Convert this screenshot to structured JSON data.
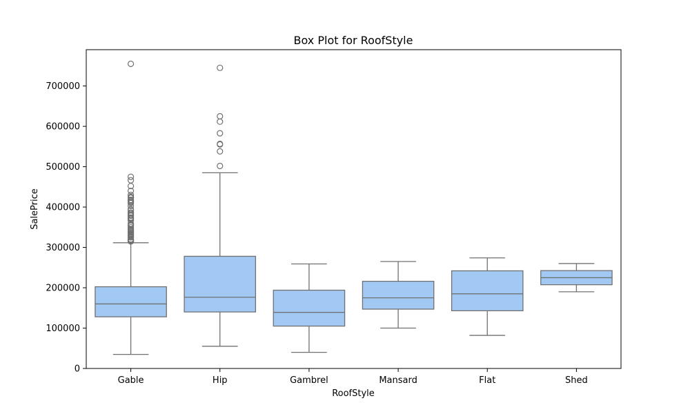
{
  "chart_data": {
    "type": "box",
    "title": "Box Plot for RoofStyle",
    "xlabel": "RoofStyle",
    "ylabel": "SalePrice",
    "ylim": [
      0,
      790000
    ],
    "yticks": [
      0,
      100000,
      200000,
      300000,
      400000,
      500000,
      600000,
      700000
    ],
    "grid": false,
    "colors": {
      "box_fill": "#a1c9f4",
      "line": "#707070"
    },
    "categories": [
      "Gable",
      "Hip",
      "Gambrel",
      "Mansard",
      "Flat",
      "Shed"
    ],
    "boxes": [
      {
        "category": "Gable",
        "whisker_low": 34900,
        "q1": 128000,
        "median": 160000,
        "q3": 202500,
        "whisker_high": 311500,
        "outliers": [
          755000,
          475000,
          466500,
          451950,
          440000,
          430000,
          424870,
          423000,
          418000,
          415298,
          412500,
          410000,
          402861,
          395000,
          392000,
          386250,
          385000,
          381000,
          378500,
          374000,
          372500,
          370878,
          367294,
          359100,
          356000,
          354000,
          350000,
          345000,
          342643,
          340000,
          337500,
          335000,
          333168,
          330000,
          328000,
          325624,
          325000,
          320000,
          319900,
          318000,
          317000,
          315000,
          314813
        ]
      },
      {
        "category": "Hip",
        "whisker_low": 55000,
        "q1": 140000,
        "median": 176500,
        "q3": 278000,
        "whisker_high": 485000,
        "outliers": [
          745000,
          625000,
          611657,
          582933,
          556581,
          555000,
          538000,
          501837
        ]
      },
      {
        "category": "Gambrel",
        "whisker_low": 40000,
        "q1": 105000,
        "median": 139000,
        "q3": 194000,
        "whisker_high": 259000,
        "outliers": []
      },
      {
        "category": "Mansard",
        "whisker_low": 100000,
        "q1": 147000,
        "median": 175000,
        "q3": 216000,
        "whisker_high": 265000,
        "outliers": []
      },
      {
        "category": "Flat",
        "whisker_low": 82000,
        "q1": 143000,
        "median": 185000,
        "q3": 242000,
        "whisker_high": 274000,
        "outliers": []
      },
      {
        "category": "Shed",
        "whisker_low": 190000,
        "q1": 207500,
        "median": 225000,
        "q3": 242500,
        "whisker_high": 260000,
        "outliers": []
      }
    ]
  }
}
